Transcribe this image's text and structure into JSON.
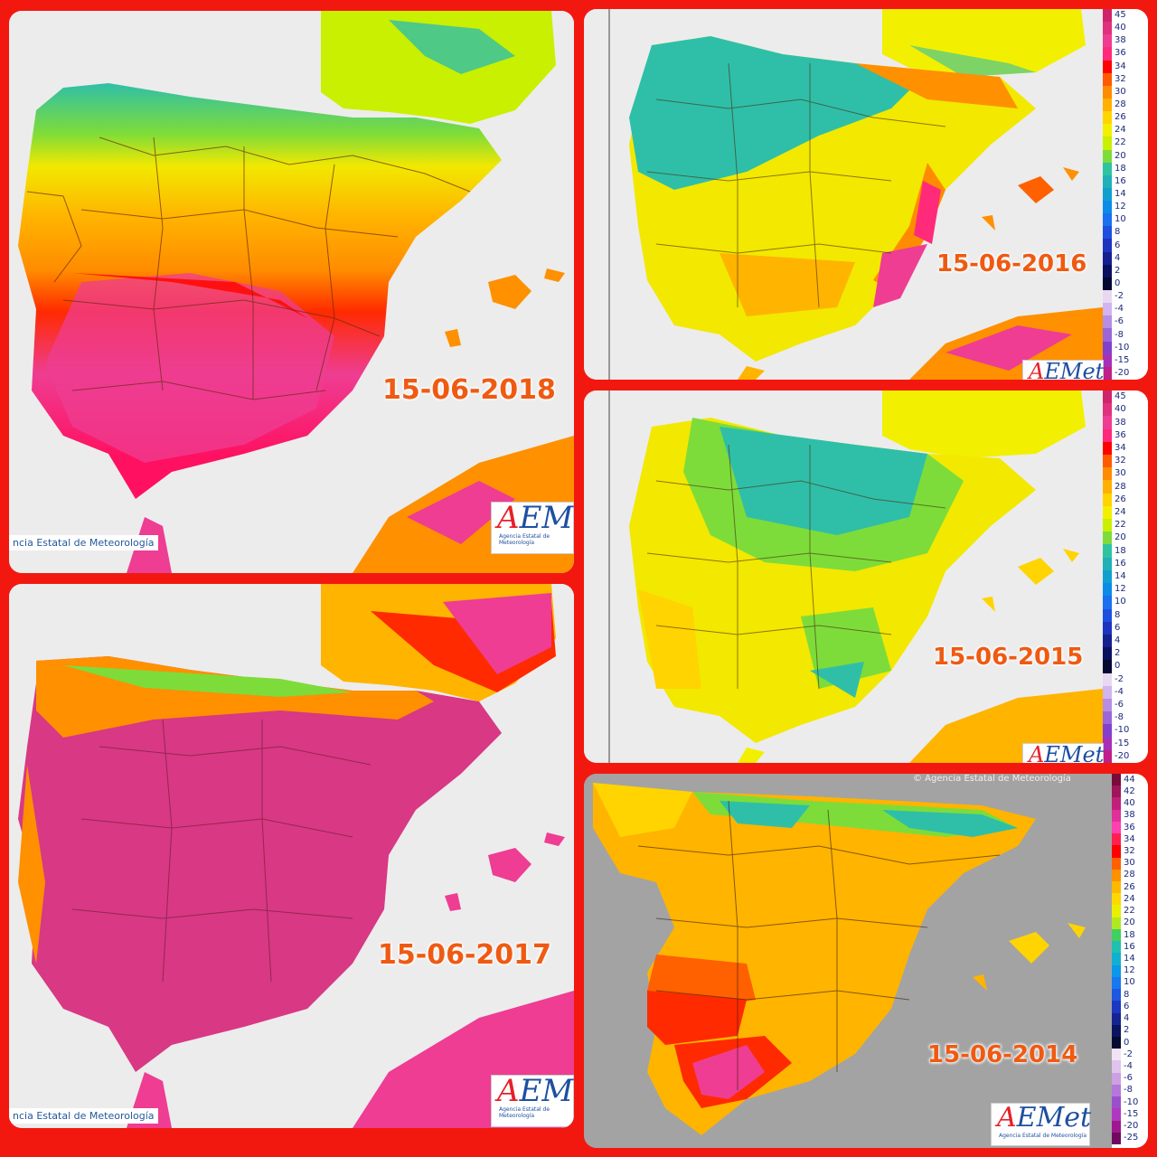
{
  "panels": {
    "p2018": {
      "date": "15-06-2018",
      "credit": "ncia Estatal de Meteorología",
      "logo": "AEMet",
      "logo_sub": "Agencia Estatal de Meteorología"
    },
    "p2017": {
      "date": "15-06-2017",
      "credit": "ncia Estatal de Meteorología",
      "logo": "AEMet",
      "logo_sub": "Agencia Estatal de Meteorología"
    },
    "p2016": {
      "date": "15-06-2016",
      "logo": "AEMet"
    },
    "p2015": {
      "date": "15-06-2015",
      "logo": "AEMet"
    },
    "p2014": {
      "date": "15-06-2014",
      "credit": "© Agencia Estatal de Meteorología",
      "logo": "AEMet",
      "logo_sub": "Agencia Estatal de Meteorología"
    }
  },
  "legend_a": {
    "ticks": [
      "45",
      "40",
      "38",
      "36",
      "34",
      "32",
      "30",
      "28",
      "26",
      "24",
      "22",
      "20",
      "18",
      "16",
      "14",
      "12",
      "10",
      "8",
      "6",
      "4",
      "2",
      "0",
      "-2",
      "-4",
      "-6",
      "-8",
      "-10",
      "-15",
      "-20"
    ],
    "colors": [
      "#d0246a",
      "#e0307e",
      "#ee3d92",
      "#ff2a7a",
      "#ff0000",
      "#ff5a00",
      "#ff8c00",
      "#ffb000",
      "#ffd400",
      "#f2f000",
      "#c8f000",
      "#7ddc3a",
      "#2fc4a0",
      "#1fb0b8",
      "#10a0d0",
      "#0a8ce8",
      "#1a70f0",
      "#1d50e0",
      "#1c34c0",
      "#142090",
      "#0a1060",
      "#050830",
      "#e8d8f2",
      "#d2b4ee",
      "#b68ee4",
      "#9a66da",
      "#8440cc",
      "#a830b8",
      "#c0208a"
    ]
  },
  "legend_b": {
    "ticks": [
      "44",
      "42",
      "40",
      "38",
      "36",
      "34",
      "32",
      "30",
      "28",
      "26",
      "24",
      "22",
      "20",
      "18",
      "16",
      "14",
      "12",
      "10",
      "8",
      "6",
      "4",
      "2",
      "0",
      "-2",
      "-4",
      "-6",
      "-8",
      "-10",
      "-15",
      "-20",
      "-25"
    ],
    "colors": [
      "#7a0a3a",
      "#a0145a",
      "#c0207a",
      "#e0309a",
      "#ff40b0",
      "#ff2050",
      "#ff0000",
      "#ff6000",
      "#ff9000",
      "#ffb800",
      "#ffd800",
      "#e8f000",
      "#b0e820",
      "#40d060",
      "#20c0b0",
      "#10b0d0",
      "#0a98e8",
      "#1878f0",
      "#1c58e0",
      "#1c38c0",
      "#142490",
      "#0a1460",
      "#050a30",
      "#f0e4f4",
      "#e0c4ec",
      "#cca0e2",
      "#b478d8",
      "#9a50cc",
      "#b038c0",
      "#a01890",
      "#700a60"
    ]
  }
}
